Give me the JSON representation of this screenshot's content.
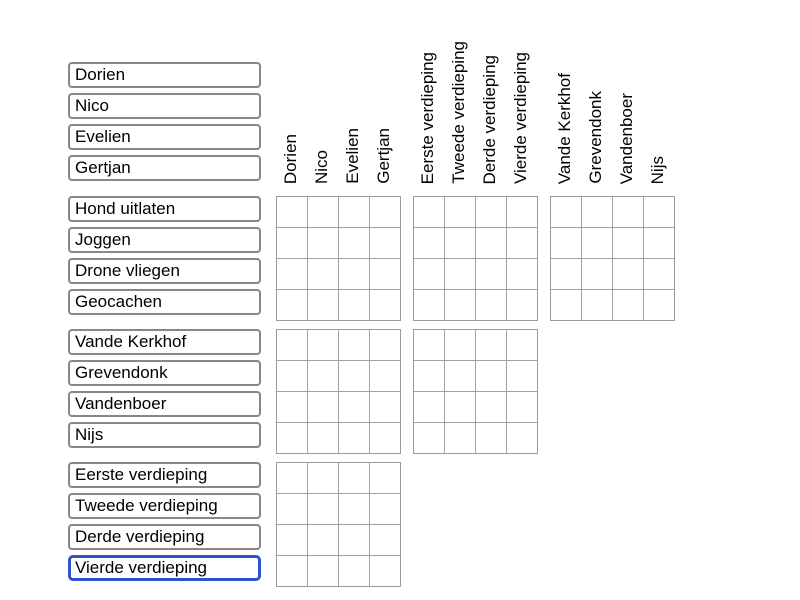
{
  "puzzle": {
    "categories": [
      {
        "id": "names",
        "labels": [
          "Dorien",
          "Nico",
          "Evelien",
          "Gertjan"
        ]
      },
      {
        "id": "activities",
        "labels": [
          "Hond uitlaten",
          "Joggen",
          "Drone vliegen",
          "Geocachen"
        ]
      },
      {
        "id": "surnames",
        "labels": [
          "Vande Kerkhof",
          "Grevendonk",
          "Vandenboer",
          "Nijs"
        ]
      },
      {
        "id": "floors",
        "labels": [
          "Eerste verdieping",
          "Tweede verdieping",
          "Derde verdieping",
          "Vierde verdieping"
        ]
      }
    ],
    "left_label_groups": [
      "names",
      "activities",
      "surnames",
      "floors"
    ],
    "column_header_groups": [
      "names",
      "floors",
      "surnames"
    ],
    "bands": [
      {
        "row_group": "activities",
        "column_groups": [
          "names",
          "floors",
          "surnames"
        ]
      },
      {
        "row_group": "surnames",
        "column_groups": [
          "names",
          "floors"
        ]
      },
      {
        "row_group": "floors",
        "column_groups": [
          "names"
        ]
      }
    ],
    "selected": {
      "group": "floors",
      "index": 3,
      "text": "Vierde verdieping"
    },
    "cell_marks": []
  },
  "colors": {
    "background": "#ffffff",
    "text": "#000000",
    "label_border": "#878787",
    "selected_border": "#2e52c7",
    "grid_line": "#a3a3a3"
  }
}
